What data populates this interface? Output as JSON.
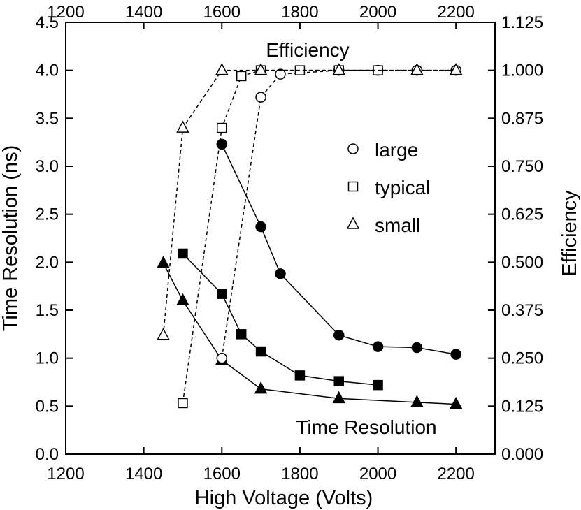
{
  "chart_data": {
    "type": "line",
    "xlabel": "High Voltage (Volts)",
    "ylabel_left": "Time Resolution (ns)",
    "ylabel_right": "Efficiency",
    "xlim": [
      1200,
      2300
    ],
    "ylim_left": [
      0.0,
      4.5
    ],
    "ylim_right": [
      0.0,
      1.125
    ],
    "x_ticks": [
      1200,
      1400,
      1600,
      1800,
      2000,
      2200
    ],
    "y_left_ticks": [
      "0.0",
      "0.5",
      "1.0",
      "1.5",
      "2.0",
      "2.5",
      "3.0",
      "3.5",
      "4.0",
      "4.5"
    ],
    "y_right_ticks": [
      "0.000",
      "0.125",
      "0.250",
      "0.375",
      "0.500",
      "0.625",
      "0.750",
      "0.875",
      "1.000",
      "1.125"
    ],
    "annotations": {
      "efficiency": "Efficiency",
      "time_resolution": "Time Resolution"
    },
    "legend": [
      {
        "label": "large",
        "marker": "circle"
      },
      {
        "label": "typical",
        "marker": "square"
      },
      {
        "label": "small",
        "marker": "triangle"
      }
    ],
    "series": [
      {
        "name": "large",
        "kind": "time_resolution",
        "marker": "circle",
        "filled": true,
        "line": "solid",
        "x": [
          1600,
          1700,
          1750,
          1900,
          2000,
          2100,
          2200
        ],
        "y": [
          3.23,
          2.37,
          1.88,
          1.24,
          1.12,
          1.11,
          1.04
        ]
      },
      {
        "name": "typical",
        "kind": "time_resolution",
        "marker": "square",
        "filled": true,
        "line": "solid",
        "x": [
          1500,
          1600,
          1650,
          1700,
          1800,
          1900,
          2000
        ],
        "y": [
          2.09,
          1.67,
          1.25,
          1.07,
          0.82,
          0.76,
          0.72
        ]
      },
      {
        "name": "small",
        "kind": "time_resolution",
        "marker": "triangle",
        "filled": true,
        "line": "solid",
        "x": [
          1450,
          1500,
          1600,
          1700,
          1900,
          2100,
          2200
        ],
        "y": [
          1.99,
          1.6,
          0.98,
          0.68,
          0.58,
          0.54,
          0.52
        ]
      },
      {
        "name": "large",
        "kind": "efficiency",
        "marker": "circle",
        "filled": false,
        "line": "dashed",
        "x": [
          1600,
          1700,
          1750,
          1900,
          2000,
          2100,
          2200
        ],
        "y": [
          0.25,
          0.93,
          0.99,
          1.0,
          1.0,
          1.0,
          1.0
        ]
      },
      {
        "name": "typical",
        "kind": "efficiency",
        "marker": "square",
        "filled": false,
        "line": "dashed",
        "x": [
          1500,
          1600,
          1650,
          1700,
          1800,
          1900,
          2000
        ],
        "y": [
          0.133,
          0.85,
          0.985,
          1.0,
          1.0,
          1.0,
          1.0
        ]
      },
      {
        "name": "small",
        "kind": "efficiency",
        "marker": "triangle",
        "filled": false,
        "line": "dashed",
        "x": [
          1450,
          1500,
          1600,
          1700,
          1900,
          2100,
          2200
        ],
        "y": [
          0.31,
          0.85,
          1.0,
          1.0,
          1.0,
          1.0,
          1.0
        ]
      }
    ]
  }
}
